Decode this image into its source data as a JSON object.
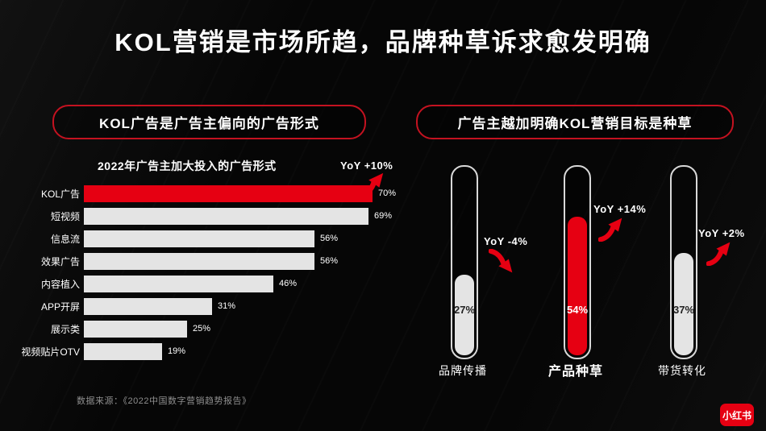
{
  "slide": {
    "title": "KOL营销是市场所趋，品牌种草诉求愈发明确",
    "source": "数据来源：《2022中国数字营销趋势报告》",
    "logo_text": "小红书"
  },
  "left_panel": {
    "header": "KOL广告是广告主偏向的广告形式"
  },
  "right_panel": {
    "header": "广告主越加明确KOL营销目标是种草"
  },
  "colors": {
    "brand_red": "#e60012",
    "bar_gray": "#e4e4e4",
    "pill_border": "#c41220",
    "background": "#060606"
  },
  "chart_data": [
    {
      "type": "bar",
      "orientation": "horizontal",
      "title": "2022年广告主加大投入的广告形式",
      "categories": [
        "KOL广告",
        "短视频",
        "信息流",
        "效果广告",
        "内容植入",
        "APP开屏",
        "展示类",
        "视频贴片OTV"
      ],
      "values": [
        70,
        69,
        56,
        56,
        46,
        31,
        25,
        19
      ],
      "value_labels": [
        "70%",
        "69%",
        "56%",
        "56%",
        "46%",
        "31%",
        "25%",
        "19%"
      ],
      "unit": "%",
      "xlim": [
        0,
        70
      ],
      "grid": false,
      "legend": false,
      "highlight_category": "KOL广告",
      "annotation": {
        "label": "YoY +10%",
        "trend": "up"
      }
    },
    {
      "type": "bar",
      "orientation": "vertical",
      "style": "capsule-thermometer",
      "categories": [
        "品牌传播",
        "产品种草",
        "带货转化"
      ],
      "values": [
        27,
        54,
        37
      ],
      "value_labels": [
        "27%",
        "54%",
        "37%"
      ],
      "unit": "%",
      "ylim": [
        0,
        100
      ],
      "grid": false,
      "legend": false,
      "highlight_category": "产品种草",
      "annotations": [
        {
          "label": "YoY -4%",
          "trend": "down"
        },
        {
          "label": "YoY +14%",
          "trend": "up"
        },
        {
          "label": "YoY +2%",
          "trend": "up"
        }
      ]
    }
  ]
}
